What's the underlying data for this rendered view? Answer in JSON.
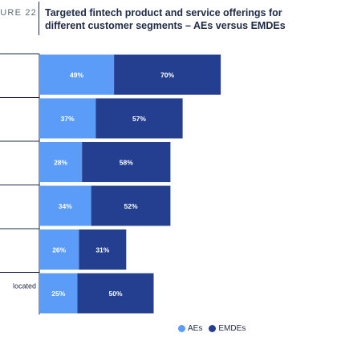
{
  "figure_label": "URE 22",
  "title": "Targeted fintech product and service offerings for different customer segments – AEs versus EMDEs",
  "chart_data": {
    "type": "bar",
    "stacked": true,
    "orientation": "horizontal",
    "categories": [
      "",
      "",
      "",
      "",
      "",
      "located"
    ],
    "series": [
      {
        "name": "AEs",
        "values": [
          49,
          37,
          28,
          34,
          26,
          25
        ],
        "color": "#5b9cf8"
      },
      {
        "name": "EMDEs",
        "values": [
          70,
          57,
          58,
          52,
          31,
          50
        ],
        "color": "#243f8f"
      }
    ],
    "value_format": "percent",
    "legend_position": "bottom",
    "grid": false
  },
  "legend": {
    "items": [
      "AEs",
      "EMDEs"
    ]
  }
}
